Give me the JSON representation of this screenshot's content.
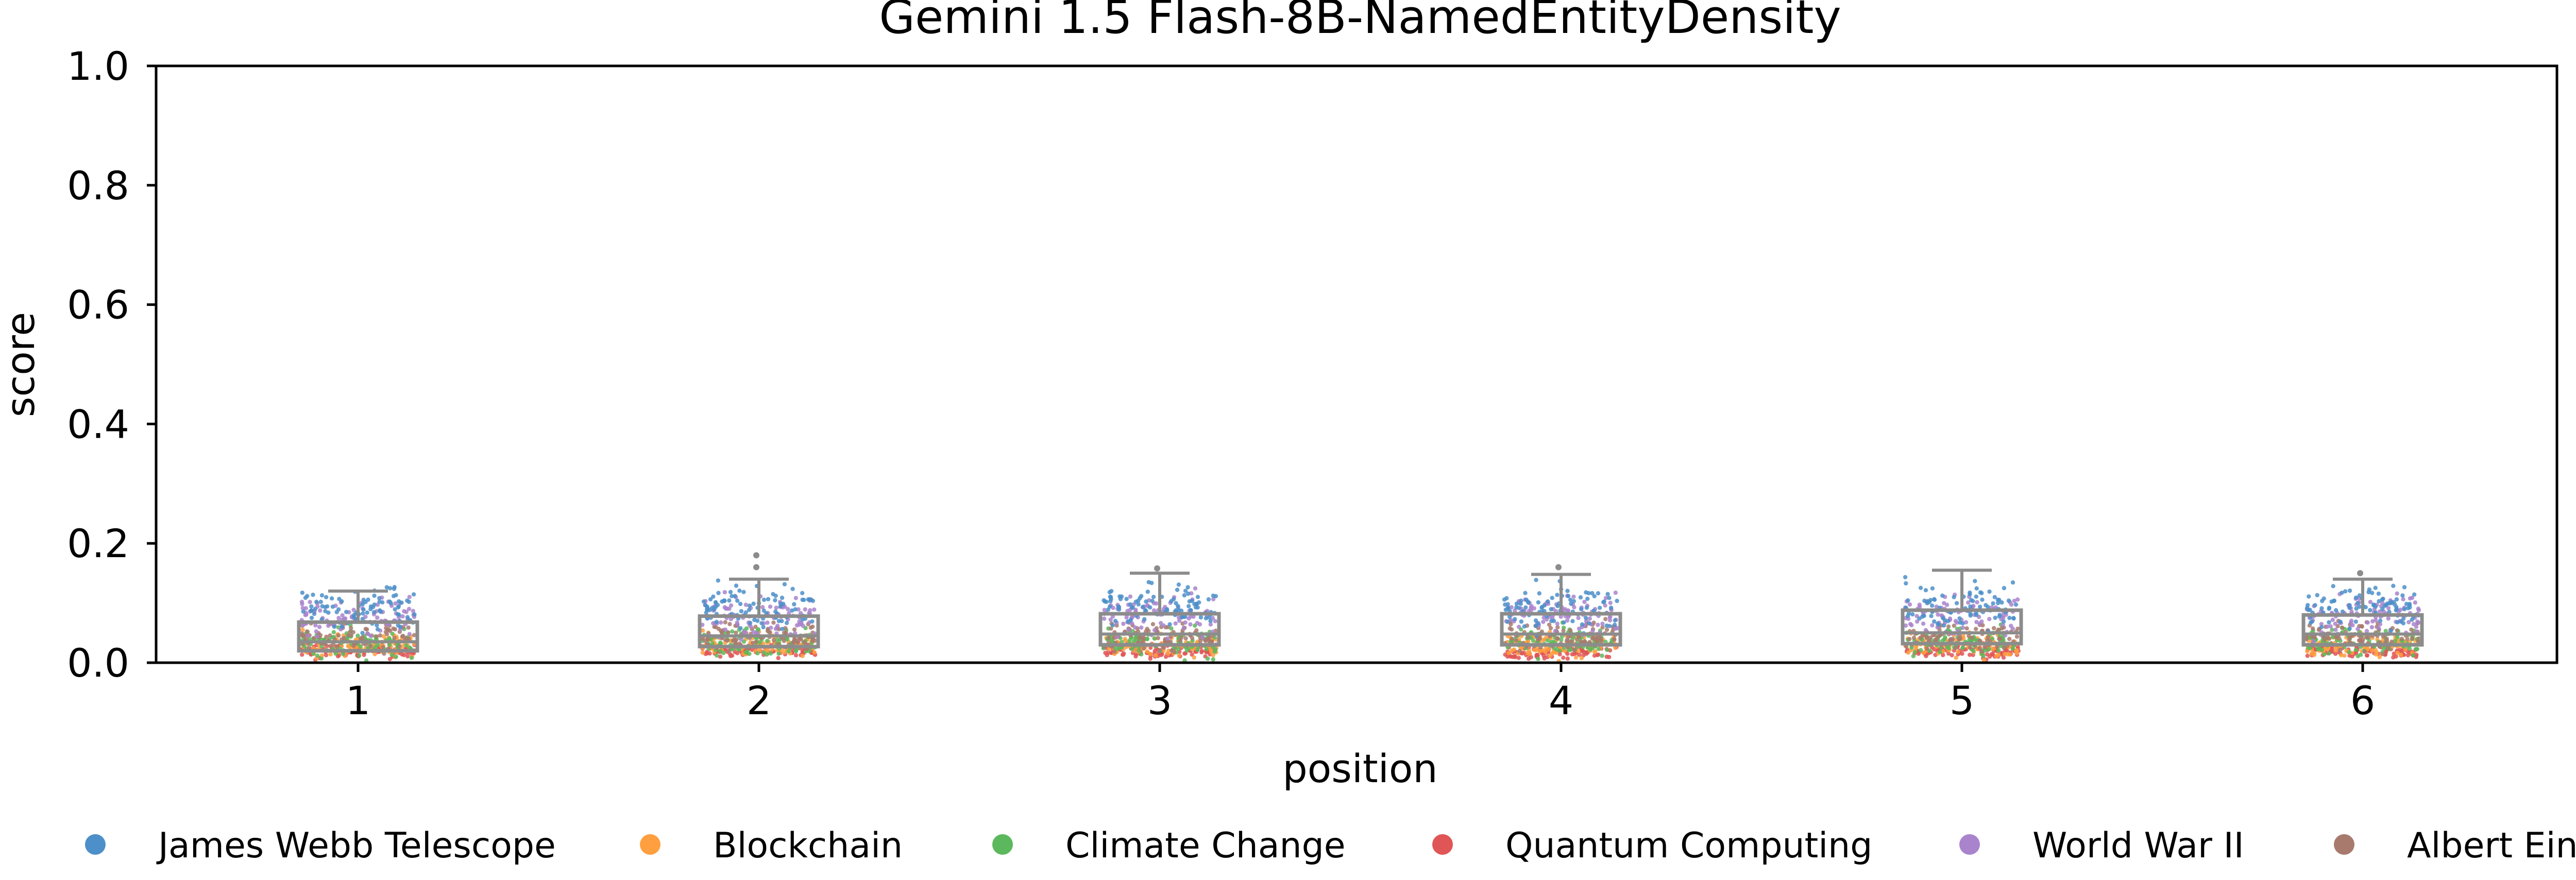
{
  "chart_data": {
    "type": "box-strip",
    "title": "Gemini 1.5 Flash-8B-NamedEntityDensity",
    "xlabel": "position",
    "ylabel": "score",
    "ylim": [
      0,
      1.0
    ],
    "yticks": [
      "0.0",
      "0.2",
      "0.4",
      "0.6",
      "0.8",
      "1.0"
    ],
    "categories": [
      "1",
      "2",
      "3",
      "4",
      "5",
      "6"
    ],
    "legend_position": "bottom",
    "grid": false,
    "boxes": [
      {
        "position": "1",
        "q1": 0.02,
        "median": 0.035,
        "q3": 0.068,
        "whisker_low": 0.0,
        "whisker_high": 0.12,
        "outliers": []
      },
      {
        "position": "2",
        "q1": 0.027,
        "median": 0.045,
        "q3": 0.078,
        "whisker_low": 0.0,
        "whisker_high": 0.14,
        "outliers": [
          0.16,
          0.18
        ]
      },
      {
        "position": "3",
        "q1": 0.03,
        "median": 0.048,
        "q3": 0.082,
        "whisker_low": 0.0,
        "whisker_high": 0.15,
        "outliers": [
          0.158
        ]
      },
      {
        "position": "4",
        "q1": 0.03,
        "median": 0.048,
        "q3": 0.082,
        "whisker_low": 0.0,
        "whisker_high": 0.148,
        "outliers": [
          0.16
        ]
      },
      {
        "position": "5",
        "q1": 0.032,
        "median": 0.05,
        "q3": 0.088,
        "whisker_low": 0.0,
        "whisker_high": 0.155,
        "outliers": []
      },
      {
        "position": "6",
        "q1": 0.03,
        "median": 0.048,
        "q3": 0.08,
        "whisker_low": 0.0,
        "whisker_high": 0.14,
        "outliers": [
          0.15
        ]
      }
    ],
    "series": [
      {
        "name": "James Webb Telescope",
        "color": "#4c8fc9",
        "typical_range": [
          0.04,
          0.15
        ]
      },
      {
        "name": "Blockchain",
        "color": "#ff9f40",
        "typical_range": [
          0.0,
          0.06
        ]
      },
      {
        "name": "Climate Change",
        "color": "#5cb85c",
        "typical_range": [
          0.0,
          0.07
        ]
      },
      {
        "name": "Quantum Computing",
        "color": "#e05555",
        "typical_range": [
          0.0,
          0.04
        ]
      },
      {
        "name": "World War II",
        "color": "#a984cc",
        "typical_range": [
          0.03,
          0.13
        ]
      },
      {
        "name": "Albert Einstein",
        "color": "#a87a6e",
        "typical_range": [
          0.01,
          0.08
        ]
      }
    ]
  }
}
